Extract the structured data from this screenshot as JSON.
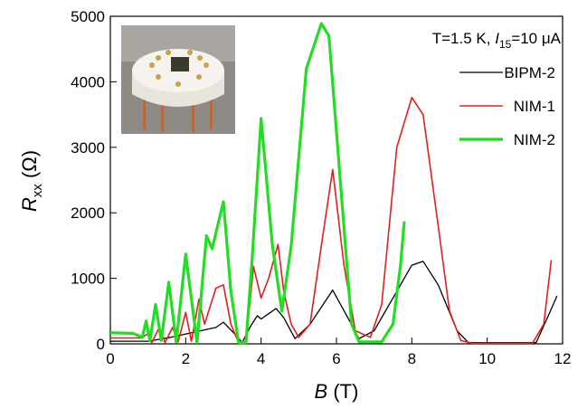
{
  "chart_data": {
    "type": "line",
    "annotation": {
      "before": "T=1.5 K, ",
      "italic": "I",
      "sub": "15",
      "after": "=10 μA"
    },
    "ylabel": {
      "italic": "R",
      "sub": "xx",
      "after": " (Ω)"
    },
    "xlabel": {
      "italic": "B",
      "after": " (T)"
    },
    "xlim": [
      0,
      12
    ],
    "xticks": [
      0,
      2,
      4,
      6,
      8,
      10,
      12
    ],
    "ylim": [
      0,
      5000
    ],
    "yticks": [
      0,
      1000,
      2000,
      3000,
      4000,
      5000
    ],
    "legend": "upper right",
    "series": [
      {
        "name": "BIPM-2",
        "color": "#000000",
        "width": 1.3,
        "x": [
          0,
          1.0,
          1.6,
          2.0,
          2.4,
          2.8,
          3.0,
          3.3,
          3.5,
          3.7,
          3.9,
          4.0,
          4.2,
          4.4,
          4.6,
          4.9,
          5.3,
          5.9,
          6.3,
          6.6,
          7.0,
          7.5,
          8.0,
          8.3,
          8.7,
          9.2,
          9.5,
          11.3,
          11.6,
          11.85
        ],
        "values": [
          40,
          40,
          100,
          150,
          200,
          250,
          330,
          150,
          20,
          250,
          430,
          380,
          460,
          540,
          400,
          80,
          300,
          820,
          400,
          80,
          200,
          700,
          1200,
          1260,
          900,
          200,
          20,
          20,
          400,
          730
        ]
      },
      {
        "name": "NIM-1",
        "color": "#e0201b",
        "width": 1.6,
        "x": [
          0,
          0.8,
          1.0,
          1.1,
          1.3,
          1.45,
          1.65,
          1.8,
          2.0,
          2.15,
          2.35,
          2.5,
          2.8,
          3.0,
          3.2,
          3.4,
          3.6,
          3.8,
          4.0,
          4.2,
          4.45,
          4.6,
          4.8,
          5.0,
          5.3,
          5.6,
          5.9,
          6.2,
          6.5,
          6.9,
          7.2,
          7.6,
          8.0,
          8.3,
          8.7,
          9.0,
          9.3,
          9.6,
          11.2,
          11.5,
          11.7
        ],
        "values": [
          90,
          90,
          150,
          20,
          250,
          20,
          250,
          30,
          480,
          40,
          680,
          300,
          850,
          900,
          300,
          20,
          20,
          1180,
          700,
          1000,
          1520,
          800,
          300,
          100,
          300,
          1500,
          2660,
          1200,
          200,
          100,
          600,
          3000,
          3760,
          3500,
          1800,
          500,
          50,
          10,
          10,
          300,
          1280
        ]
      },
      {
        "name": "NIM-2",
        "color": "#22dd22",
        "width": 3.2,
        "x": [
          0,
          0.6,
          0.85,
          0.95,
          1.05,
          1.2,
          1.35,
          1.55,
          1.75,
          2.0,
          2.3,
          2.55,
          2.7,
          3.0,
          3.2,
          3.4,
          3.6,
          3.75,
          4.0,
          4.3,
          4.55,
          4.8,
          5.2,
          5.6,
          5.8,
          6.1,
          6.4,
          6.6,
          7.2,
          7.5,
          7.7,
          7.8
        ],
        "values": [
          170,
          160,
          100,
          350,
          50,
          600,
          50,
          940,
          30,
          1370,
          20,
          1650,
          1450,
          2170,
          800,
          20,
          20,
          1200,
          3440,
          1500,
          500,
          1500,
          4200,
          4890,
          4700,
          2500,
          300,
          30,
          30,
          300,
          1200,
          1870
        ]
      }
    ]
  }
}
